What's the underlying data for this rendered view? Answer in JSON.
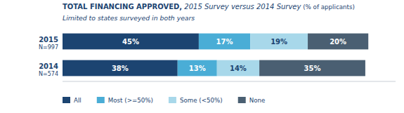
{
  "chart_data": {
    "type": "bar",
    "orientation": "horizontal",
    "stacked": true,
    "data_labels": true,
    "tick_labels": false,
    "title": [
      "TOTAL FINANCING APPROVED,",
      " 2015 Survey versus 2014 Survey",
      " (% of applicants)"
    ],
    "subtitle": "Limited to states surveyed in both years",
    "categories": [
      "2015",
      "2014"
    ],
    "annotations": [
      {
        "text": "N=997",
        "category": "2015"
      },
      {
        "text": "N=574",
        "category": "2014"
      }
    ],
    "xlim": [
      0,
      110
    ],
    "series": [
      {
        "name": "All",
        "color": "#1c4471",
        "values": [
          45,
          38
        ],
        "value_labels": [
          "45%",
          "38%"
        ]
      },
      {
        "name": "Most (>=50%)",
        "color": "#4aadd6",
        "values": [
          17,
          13
        ],
        "value_labels": [
          "17%",
          "13%"
        ]
      },
      {
        "name": "Some (<50%)",
        "color": "#a8d8ea",
        "values": [
          19,
          14
        ],
        "value_labels": [
          "19%",
          "14%"
        ]
      },
      {
        "name": "None",
        "color": "#4a5f72",
        "values": [
          20,
          35
        ],
        "value_labels": [
          "20%",
          "35%"
        ]
      }
    ]
  }
}
